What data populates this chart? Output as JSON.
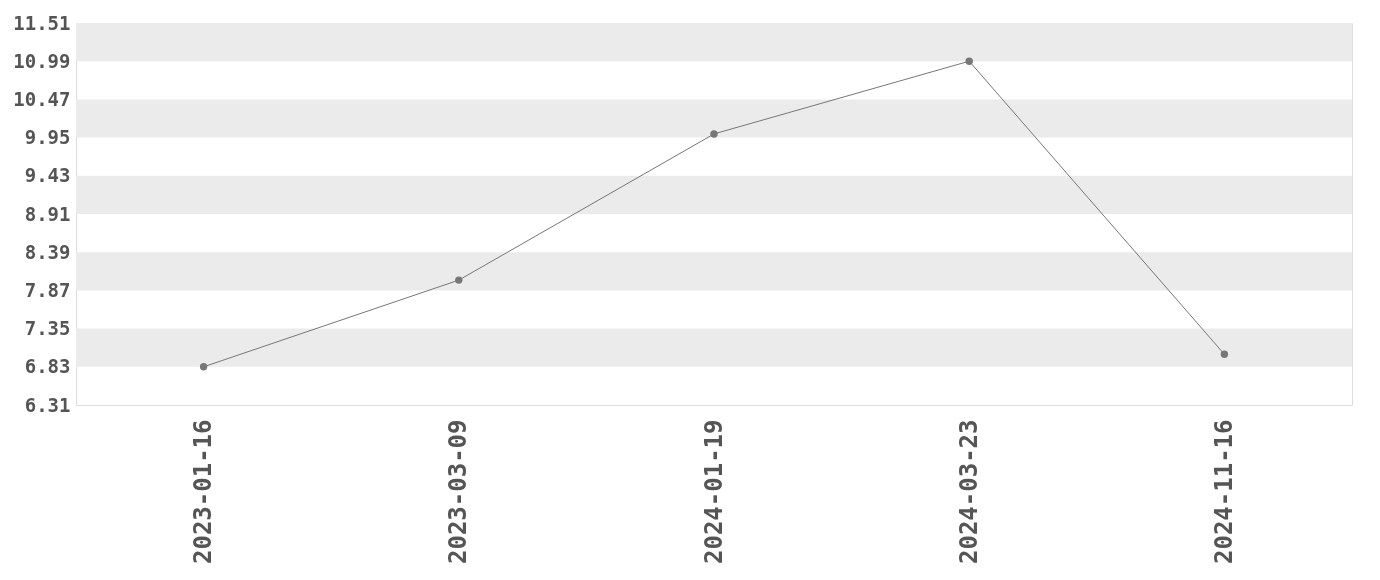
{
  "chart_data": {
    "type": "line",
    "categories": [
      "2023-01-16",
      "2023-03-09",
      "2024-01-19",
      "2024-03-23",
      "2024-11-16"
    ],
    "series": [
      {
        "color": "#777777",
        "values": [
          6.83,
          8.01,
          10.0,
          10.99,
          7.0
        ]
      }
    ],
    "ylim": [
      6.31,
      11.51
    ],
    "yticks": [
      6.31,
      6.83,
      7.35,
      7.87,
      8.39,
      8.91,
      9.43,
      9.95,
      10.47,
      10.99,
      11.51
    ],
    "marker": "circle",
    "bands": [
      {
        "axis": "y",
        "from": 6.83,
        "to": 7.35,
        "color": "#ebebeb"
      },
      {
        "axis": "y",
        "from": 7.87,
        "to": 8.39,
        "color": "#ebebeb"
      },
      {
        "axis": "y",
        "from": 8.91,
        "to": 9.43,
        "color": "#ebebeb"
      },
      {
        "axis": "y",
        "from": 9.95,
        "to": 10.47,
        "color": "#ebebeb"
      },
      {
        "axis": "y",
        "from": 10.99,
        "to": 11.51,
        "color": "#ebebeb"
      }
    ]
  }
}
